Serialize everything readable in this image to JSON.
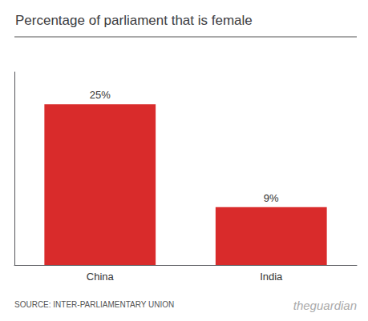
{
  "chart_data": {
    "type": "bar",
    "title": "Percentage of parliament that is female",
    "categories": [
      "China",
      "India"
    ],
    "values": [
      25,
      9
    ],
    "value_labels": [
      "25%",
      "9%"
    ],
    "data_labels": true,
    "color": "#d92b2b",
    "ylim": [
      0,
      30
    ],
    "yticks": [],
    "tick_labels": "x",
    "grid": false,
    "annotations": [
      "SOURCE: INTER-PARLIAMENTARY UNION",
      "theguardian"
    ]
  }
}
